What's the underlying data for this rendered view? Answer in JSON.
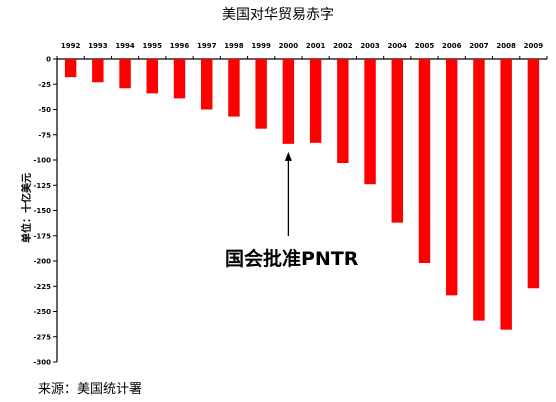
{
  "chart_data": {
    "type": "bar",
    "title": "美国对华贸易赤字",
    "ylabel": "单位：十亿美元",
    "xlabel": "",
    "ylim": [
      -300,
      0
    ],
    "y_ticks": [
      0,
      -25,
      -50,
      -75,
      -100,
      -125,
      -150,
      -175,
      -200,
      -225,
      -250,
      -275,
      -300
    ],
    "categories": [
      "1992",
      "1993",
      "1994",
      "1995",
      "1996",
      "1997",
      "1998",
      "1999",
      "2000",
      "2001",
      "2002",
      "2003",
      "2004",
      "2005",
      "2006",
      "2007",
      "2008",
      "2009"
    ],
    "values": [
      -18,
      -23,
      -29,
      -34,
      -39,
      -50,
      -57,
      -69,
      -84,
      -83,
      -103,
      -124,
      -162,
      -202,
      -234,
      -259,
      -268,
      -227
    ],
    "bar_color": "#ff0000",
    "grid": false,
    "annotation": {
      "text": "国会批准PNTR",
      "target_category": "2000"
    },
    "source": "来源：美国统计署"
  }
}
